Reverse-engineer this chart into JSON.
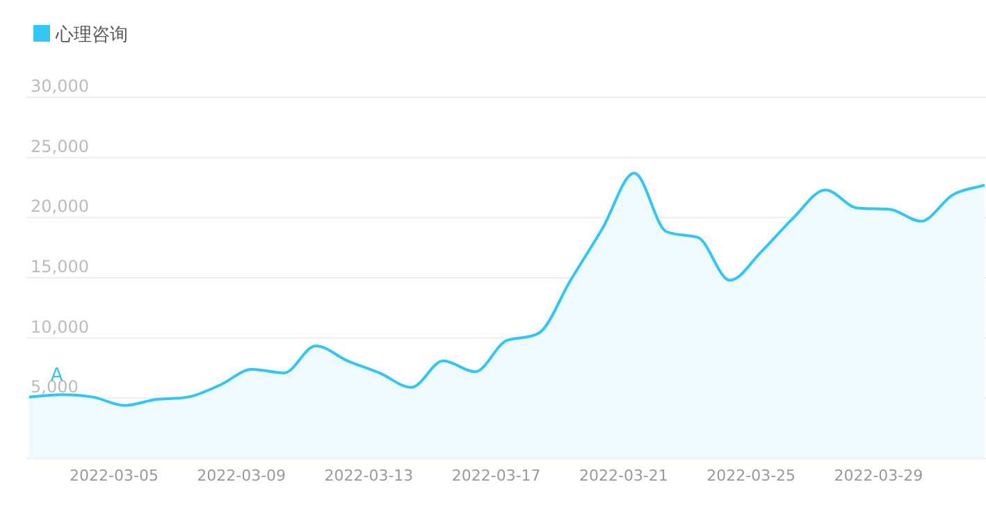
{
  "chart_data": {
    "type": "area",
    "legend": "top left",
    "grid": "y",
    "x": [
      "2022-03-02T08:00",
      "2022-03-03T08:00",
      "2022-03-04T08:00",
      "2022-03-05T08:00",
      "2022-03-06T08:00",
      "2022-03-07T08:00",
      "2022-03-08T08:00",
      "2022-03-09T08:00",
      "2022-03-10T08:00",
      "2022-03-11T08:00",
      "2022-03-12T08:00",
      "2022-03-13T08:00",
      "2022-03-14T08:00",
      "2022-03-15T08:00",
      "2022-03-16T08:00",
      "2022-03-17T08:00",
      "2022-03-18T08:00",
      "2022-03-19T08:00",
      "2022-03-20T08:00",
      "2022-03-21T08:00",
      "2022-03-22T08:00",
      "2022-03-23T08:00",
      "2022-03-24T08:00",
      "2022-03-25T08:00",
      "2022-03-26T08:00",
      "2022-03-27T08:00",
      "2022-03-28T08:00",
      "2022-03-29T08:00",
      "2022-03-30T08:00",
      "2022-03-31T08:00",
      "2022-04-01T08:00"
    ],
    "series": [
      {
        "name": "心理咨询",
        "color": "#33c5f3",
        "values": [
          5100,
          5300,
          5100,
          4400,
          4900,
          5100,
          6100,
          7400,
          7100,
          9350,
          8100,
          7100,
          5900,
          8100,
          7200,
          9800,
          10400,
          14800,
          19100,
          23700,
          18850,
          18350,
          14800,
          17200,
          20000,
          22300,
          20800,
          20700,
          19700,
          21900,
          22700
        ]
      }
    ],
    "xlim": [
      "2022-03-02T06:00",
      "2022-04-01T09:00"
    ],
    "xticks": [
      "2022-03-05",
      "2022-03-09",
      "2022-03-13",
      "2022-03-17",
      "2022-03-21",
      "2022-03-25",
      "2022-03-29"
    ],
    "ylim": [
      0,
      30000
    ],
    "yticks": [
      {
        "value": 0,
        "label": null
      },
      {
        "value": 5000,
        "label": "5,000"
      },
      {
        "value": 10000,
        "label": "10,000"
      },
      {
        "value": 15000,
        "label": "15,000"
      },
      {
        "value": 20000,
        "label": "20,000"
      },
      {
        "value": 25000,
        "label": "25,000"
      },
      {
        "value": 30000,
        "label": "30,000"
      }
    ],
    "annotations": [
      {
        "text": "A",
        "x": "2022-03-03T08:00",
        "y": 5300
      }
    ]
  }
}
